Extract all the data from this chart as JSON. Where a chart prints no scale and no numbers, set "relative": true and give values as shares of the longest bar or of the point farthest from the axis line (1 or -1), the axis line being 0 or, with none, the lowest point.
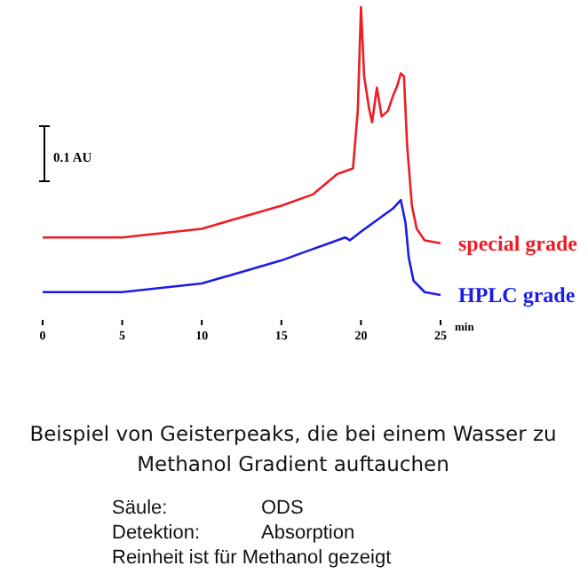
{
  "chart_data": {
    "type": "line",
    "relative": true,
    "xlabel": "min",
    "xlim": [
      0,
      25
    ],
    "xticks": [
      0,
      5,
      10,
      15,
      20,
      25
    ],
    "grid": false,
    "legend": false,
    "marker": "none",
    "line_style": "solid",
    "title": "Beispiel von Geisterpeaks, die bei einem Wasser zu Methanol Gradient auftauchen",
    "annotations": [
      "0.1 AU",
      "Säule:",
      "ODS",
      "Detektion:",
      "Absorption",
      "Reinheit ist für Methanol gezeigt"
    ],
    "series": [
      {
        "name": "special grade",
        "color": "#ee1c24",
        "x": [
          0,
          5,
          10,
          15,
          17,
          18.5,
          19.5,
          19.8,
          20,
          20.2,
          20.5,
          20.7,
          21,
          21.3,
          21.7,
          22,
          22.3,
          22.5,
          22.7,
          22.9,
          23.2,
          23.5,
          24,
          25
        ],
        "values": [
          0.2,
          0.2,
          0.23,
          0.31,
          0.35,
          0.42,
          0.44,
          0.64,
          1,
          0.76,
          0.65,
          0.6,
          0.72,
          0.62,
          0.64,
          0.69,
          0.73,
          0.77,
          0.76,
          0.52,
          0.31,
          0.23,
          0.19,
          0.18
        ]
      },
      {
        "name": "HPLC grade",
        "color": "#1c1ce6",
        "x": [
          0,
          5,
          10,
          15,
          16.5,
          18,
          19,
          19.3,
          20,
          21,
          22,
          22.5,
          22.8,
          23,
          23.3,
          24,
          25
        ],
        "values": [
          0.01,
          0.01,
          0.04,
          0.12,
          0.15,
          0.18,
          0.2,
          0.19,
          0.22,
          0.26,
          0.3,
          0.33,
          0.25,
          0.13,
          0.05,
          0.01,
          0
        ]
      }
    ]
  }
}
